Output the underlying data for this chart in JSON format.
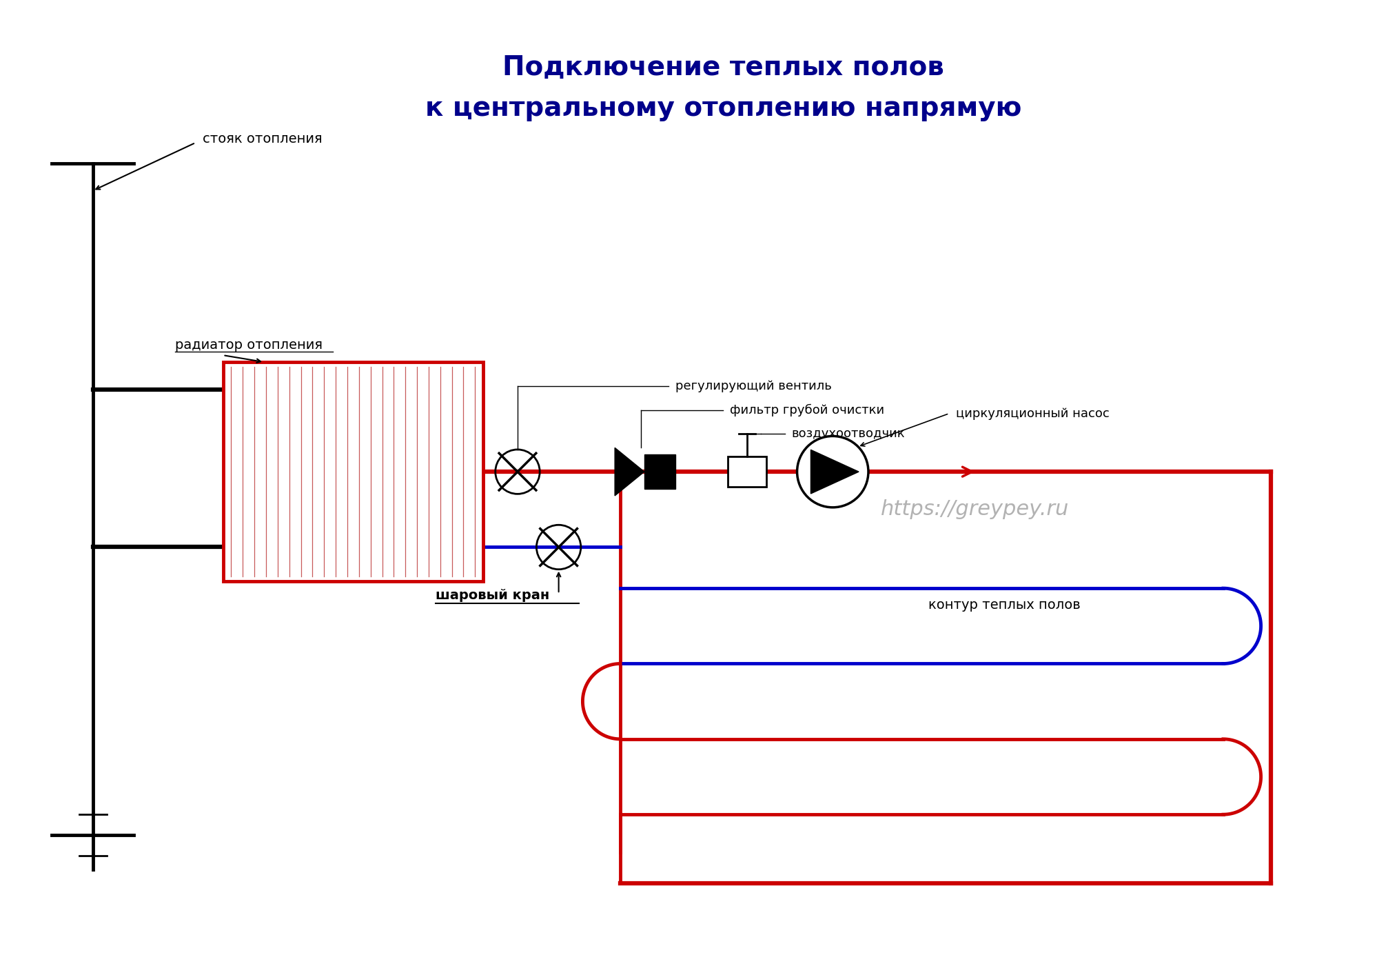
{
  "title_line1": "Подключение теплых полов",
  "title_line2": "к центральному отоплению напрямую",
  "title_color": "#00008B",
  "title_fontsize": 28,
  "label_stoyak": "стояк отопления",
  "label_radiator": "радиатор отопления",
  "label_ventil": "регулирующий вентиль",
  "label_filtr": "фильтр грубой очистки",
  "label_vozduh": "воздухоотводчик",
  "label_nasos": "циркуляционный насос",
  "label_kran": "шаровый кран",
  "label_kontur": "контур теплых полов",
  "label_url": "https://greypey.ru",
  "bg_color": "#FFFFFF",
  "red_color": "#CC0000",
  "blue_color": "#0000CC",
  "black_color": "#000000",
  "gray_color": "#AAAAAA",
  "line_lw": 3.5,
  "thin_lw": 2.0
}
